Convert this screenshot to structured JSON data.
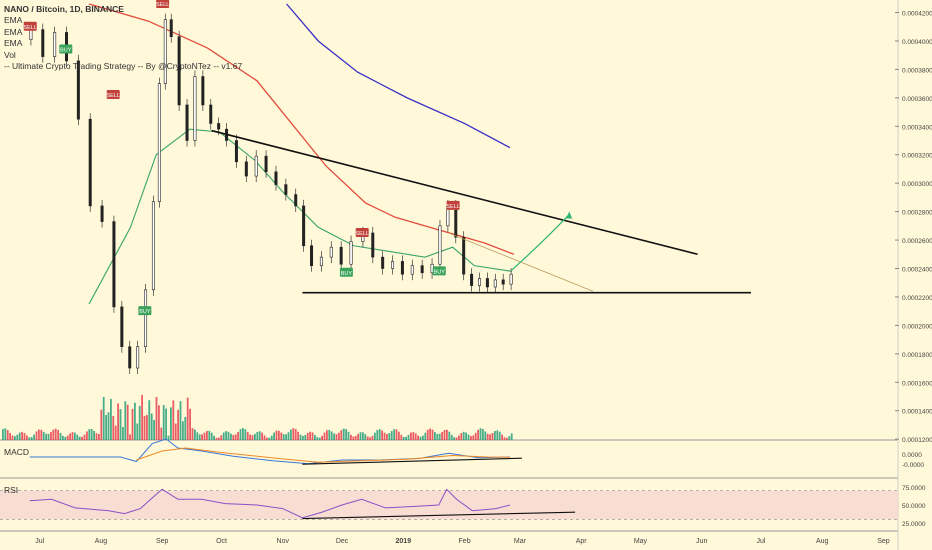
{
  "chart_data": {
    "type": "candlestick",
    "symbol": "NANO / Bitcoin, 1D, BINANCE",
    "indicators": [
      "EMA",
      "EMA",
      "EMA",
      "Vol",
      "-- Ultimate Crypto Trading Strategy -- By @CryptoNTez -- v1.67"
    ],
    "price_axis": {
      "ticks": [
        "0.0004200",
        "0.0004000",
        "0.0003800",
        "0.0003600",
        "0.0003400",
        "0.0003200",
        "0.0003000",
        "0.0002800",
        "0.0002600",
        "0.0002400",
        "0.0002200",
        "0.0002000",
        "0.0001800",
        "0.0001600",
        "0.0001400",
        "0.0001200"
      ],
      "range": [
        0.000118,
        0.000426
      ]
    },
    "time_axis": [
      "Jul",
      "Aug",
      "Sep",
      "Oct",
      "Nov",
      "Dec",
      "2019",
      "Feb",
      "Mar",
      "Apr",
      "May",
      "Jun",
      "Jul",
      "Aug",
      "Sep"
    ],
    "signals": [
      {
        "label": "SELL",
        "date": "2018-07-01",
        "price": 0.00041
      },
      {
        "label": "SELL",
        "date": "2018-08-12",
        "price": 0.000362
      },
      {
        "label": "SELL",
        "date": "2018-09-06",
        "price": 0.000426
      },
      {
        "label": "BUY",
        "date": "2018-07-19",
        "price": 0.000394
      },
      {
        "label": "BUY",
        "date": "2018-08-28",
        "price": 0.00021
      },
      {
        "label": "SELL",
        "date": "2018-12-16",
        "price": 0.000265
      },
      {
        "label": "BUY",
        "date": "2018-12-08",
        "price": 0.000237
      },
      {
        "label": "BUY",
        "date": "2019-01-24",
        "price": 0.000238
      },
      {
        "label": "SELL",
        "date": "2019-01-31",
        "price": 0.000284
      }
    ],
    "ema_slow": [
      [
        "2018-11-08",
        0.000426
      ],
      [
        "2018-11-24",
        0.0004
      ],
      [
        "2018-12-14",
        0.000378
      ],
      [
        "2019-01-08",
        0.00036
      ],
      [
        "2019-02-06",
        0.000342
      ],
      [
        "2019-03-01",
        0.000325
      ]
    ],
    "ema_mid": [
      [
        "2018-07-31",
        0.000426
      ],
      [
        "2018-08-30",
        0.000414
      ],
      [
        "2018-09-29",
        0.000395
      ],
      [
        "2018-10-24",
        0.000372
      ],
      [
        "2018-11-28",
        0.000312
      ],
      [
        "2018-12-18",
        0.000286
      ],
      [
        "2019-01-02",
        0.000276
      ],
      [
        "2019-01-22",
        0.000268
      ],
      [
        "2019-02-16",
        0.000258
      ],
      [
        "2019-03-03",
        0.00025
      ]
    ],
    "ema_fast": [
      [
        "2018-07-31",
        0.000215
      ],
      [
        "2018-08-21",
        0.000269
      ],
      [
        "2018-09-03",
        0.00032
      ],
      [
        "2018-09-20",
        0.000338
      ],
      [
        "2018-10-05",
        0.000336
      ],
      [
        "2018-10-23",
        0.000316
      ],
      [
        "2018-11-06",
        0.000294
      ],
      [
        "2018-11-24",
        0.000269
      ],
      [
        "2018-12-12",
        0.000256
      ],
      [
        "2018-12-30",
        0.000252
      ],
      [
        "2019-01-17",
        0.000248
      ],
      [
        "2019-01-31",
        0.000255
      ],
      [
        "2019-02-11",
        0.000242
      ],
      [
        "2019-03-02",
        0.000238
      ]
    ],
    "candles": [
      [
        "2018-07-01",
        0.000401,
        0.000408
      ],
      [
        "2018-07-07",
        0.000408,
        0.000389
      ],
      [
        "2018-07-13",
        0.000389,
        0.000406
      ],
      [
        "2018-07-19",
        0.000406,
        0.000386
      ],
      [
        "2018-07-25",
        0.000386,
        0.000345
      ],
      [
        "2018-07-31",
        0.000345,
        0.000284
      ],
      [
        "2018-08-06",
        0.000284,
        0.000273
      ],
      [
        "2018-08-12",
        0.000273,
        0.000213
      ],
      [
        "2018-08-16",
        0.000213,
        0.000185
      ],
      [
        "2018-08-20",
        0.000185,
        0.00017
      ],
      [
        "2018-08-24",
        0.00017,
        0.000185
      ],
      [
        "2018-08-28",
        0.000185,
        0.000225
      ],
      [
        "2018-09-01",
        0.000225,
        0.000287
      ],
      [
        "2018-09-04",
        0.000287,
        0.00037
      ],
      [
        "2018-09-07",
        0.00037,
        0.000415
      ],
      [
        "2018-09-10",
        0.000415,
        0.000403
      ],
      [
        "2018-09-14",
        0.000403,
        0.000355
      ],
      [
        "2018-09-18",
        0.000355,
        0.00033
      ],
      [
        "2018-09-22",
        0.00033,
        0.000375
      ],
      [
        "2018-09-26",
        0.000375,
        0.000355
      ],
      [
        "2018-09-30",
        0.000355,
        0.000342
      ],
      [
        "2018-10-04",
        0.000342,
        0.000338
      ],
      [
        "2018-10-08",
        0.000338,
        0.00033
      ],
      [
        "2018-10-13",
        0.00033,
        0.000315
      ],
      [
        "2018-10-18",
        0.000315,
        0.000305
      ],
      [
        "2018-10-23",
        0.000305,
        0.000319
      ],
      [
        "2018-10-28",
        0.000319,
        0.000308
      ],
      [
        "2018-11-02",
        0.000308,
        0.000299
      ],
      [
        "2018-11-07",
        0.000299,
        0.000292
      ],
      [
        "2018-11-12",
        0.000292,
        0.000284
      ],
      [
        "2018-11-16",
        0.000284,
        0.000256
      ],
      [
        "2018-11-20",
        0.000256,
        0.000242
      ],
      [
        "2018-11-25",
        0.000242,
        0.000248
      ],
      [
        "2018-11-30",
        0.000248,
        0.000255
      ],
      [
        "2018-12-05",
        0.000255,
        0.000243
      ],
      [
        "2018-12-10",
        0.000243,
        0.000259
      ],
      [
        "2018-12-16",
        0.000259,
        0.000265
      ],
      [
        "2018-12-21",
        0.000265,
        0.000248
      ],
      [
        "2018-12-26",
        0.000248,
        0.00024
      ],
      [
        "2018-12-31",
        0.00024,
        0.000245
      ],
      [
        "2019-01-05",
        0.000245,
        0.000236
      ],
      [
        "2019-01-10",
        0.000236,
        0.000242
      ],
      [
        "2019-01-15",
        0.000242,
        0.000237
      ],
      [
        "2019-01-20",
        0.000237,
        0.000243
      ],
      [
        "2019-01-24",
        0.000243,
        0.00027
      ],
      [
        "2019-01-28",
        0.00027,
        0.000284
      ],
      [
        "2019-02-01",
        0.000284,
        0.000262
      ],
      [
        "2019-02-05",
        0.000262,
        0.000236
      ],
      [
        "2019-02-09",
        0.000236,
        0.000228
      ],
      [
        "2019-02-13",
        0.000228,
        0.000233
      ],
      [
        "2019-02-17",
        0.000233,
        0.000227
      ],
      [
        "2019-02-21",
        0.000227,
        0.000232
      ],
      [
        "2019-02-25",
        0.000232,
        0.000229
      ],
      [
        "2019-03-01",
        0.000229,
        0.000236
      ]
    ],
    "trendlines": [
      {
        "name": "resistance",
        "from": [
          "2018-10-01",
          0.000337
        ],
        "to": [
          "2019-06-04",
          0.00025
        ]
      },
      {
        "name": "support",
        "from": [
          "2018-11-16",
          0.000223
        ],
        "to": [
          "2019-07-01",
          0.000223
        ]
      },
      {
        "name": "minor-resistance",
        "from": [
          "2019-01-29",
          0.000265
        ],
        "to": [
          "2019-04-12",
          0.000224
        ]
      }
    ],
    "projection": [
      [
        "2019-03-02",
        0.000239
      ],
      [
        "2019-03-18",
        0.000259
      ],
      [
        "2019-03-31",
        0.000278
      ]
    ],
    "macd": {
      "label": "MACD",
      "ticks": [
        "0.0000",
        "-0.0000"
      ],
      "macd_line": [
        [
          "2018-07-01",
          0
        ],
        [
          "2018-08-16",
          0
        ],
        [
          "2018-08-24",
          -3.0
        ],
        [
          "2018-09-01",
          9.0
        ],
        [
          "2018-09-08",
          12.0
        ],
        [
          "2018-09-14",
          6.0
        ],
        [
          "2018-09-26",
          4.0
        ],
        [
          "2018-10-12",
          0.5
        ],
        [
          "2018-11-01",
          -2.5
        ],
        [
          "2018-11-19",
          -4.5
        ],
        [
          "2018-12-06",
          -2.0
        ],
        [
          "2018-12-24",
          -2.0
        ],
        [
          "2019-01-14",
          -1.0
        ],
        [
          "2019-01-29",
          2.5
        ],
        [
          "2019-02-13",
          -0.5
        ],
        [
          "2019-03-01",
          0.0
        ]
      ],
      "signal_line": [
        [
          "2018-08-24",
          -2.0
        ],
        [
          "2018-09-06",
          4.0
        ],
        [
          "2018-09-18",
          6.0
        ],
        [
          "2018-10-06",
          3.0
        ],
        [
          "2018-11-04",
          -1.0
        ],
        [
          "2018-11-24",
          -3.5
        ],
        [
          "2018-12-16",
          -2.5
        ],
        [
          "2019-01-08",
          -1.5
        ],
        [
          "2019-01-31",
          1.0
        ],
        [
          "2019-02-18",
          0.0
        ],
        [
          "2019-03-01",
          -0.2
        ]
      ],
      "divergence_line": {
        "from": [
          "2018-11-16",
          -4.8
        ],
        "to": [
          "2019-03-01",
          -0.8
        ]
      }
    },
    "rsi": {
      "label": "RSI",
      "ticks": [
        "75.0000",
        "50.0000",
        "25.0000"
      ],
      "band": [
        30,
        70
      ],
      "values": [
        [
          "2018-07-01",
          56
        ],
        [
          "2018-07-12",
          58
        ],
        [
          "2018-07-24",
          46
        ],
        [
          "2018-08-10",
          42
        ],
        [
          "2018-08-18",
          38
        ],
        [
          "2018-08-26",
          45
        ],
        [
          "2018-09-01",
          60
        ],
        [
          "2018-09-06",
          72
        ],
        [
          "2018-09-14",
          58
        ],
        [
          "2018-09-26",
          58
        ],
        [
          "2018-10-08",
          52
        ],
        [
          "2018-10-24",
          50
        ],
        [
          "2018-11-06",
          45
        ],
        [
          "2018-11-16",
          32
        ],
        [
          "2018-11-26",
          40
        ],
        [
          "2018-12-06",
          50
        ],
        [
          "2018-12-16",
          58
        ],
        [
          "2018-12-28",
          46
        ],
        [
          "2019-01-12",
          48
        ],
        [
          "2019-01-24",
          50
        ],
        [
          "2019-01-28",
          72
        ],
        [
          "2019-02-02",
          58
        ],
        [
          "2019-02-10",
          42
        ],
        [
          "2019-02-22",
          45
        ],
        [
          "2019-03-01",
          50
        ]
      ],
      "divergence_line": {
        "from": [
          "2018-11-16",
          31
        ],
        "to": [
          "2019-04-03",
          40
        ]
      }
    }
  }
}
